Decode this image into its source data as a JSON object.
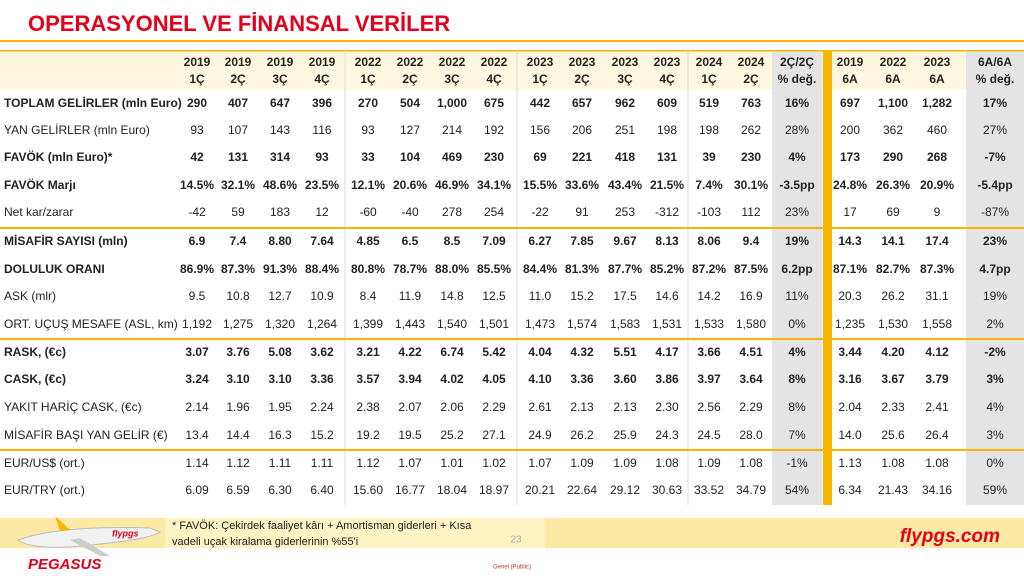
{
  "title": "OPERASYONEL VE FİNANSAL VERİLER",
  "table": {
    "columns": [
      [
        "2019",
        "1Ç"
      ],
      [
        "2019",
        "2Ç"
      ],
      [
        "2019",
        "3Ç"
      ],
      [
        "2019",
        "4Ç"
      ],
      [
        "2022",
        "1Ç"
      ],
      [
        "2022",
        "2Ç"
      ],
      [
        "2022",
        "3Ç"
      ],
      [
        "2022",
        "4Ç"
      ],
      [
        "2023",
        "1Ç"
      ],
      [
        "2023",
        "2Ç"
      ],
      [
        "2023",
        "3Ç"
      ],
      [
        "2023",
        "4Ç"
      ],
      [
        "2024",
        "1Ç"
      ],
      [
        "2024",
        "2Ç"
      ],
      [
        "2Ç/2Ç",
        "% değ."
      ],
      [
        "2019",
        "6A"
      ],
      [
        "2022",
        "6A"
      ],
      [
        "2023",
        "6A"
      ],
      [
        "6A/6A",
        "% değ."
      ]
    ],
    "rows": [
      {
        "label": "TOPLAM GELİRLER (mln Euro)",
        "bold": true,
        "cells": [
          "290",
          "407",
          "647",
          "396",
          "270",
          "504",
          "1,000",
          "675",
          "442",
          "657",
          "962",
          "609",
          "519",
          "763",
          "16%",
          "697",
          "1,100",
          "1,282",
          "17%"
        ]
      },
      {
        "label": "YAN GELİRLER (mln Euro)",
        "bold": false,
        "cells": [
          "93",
          "107",
          "143",
          "116",
          "93",
          "127",
          "214",
          "192",
          "156",
          "206",
          "251",
          "198",
          "198",
          "262",
          "28%",
          "200",
          "362",
          "460",
          "27%"
        ]
      },
      {
        "label": "FAVÖK (mln Euro)*",
        "bold": true,
        "cells": [
          "42",
          "131",
          "314",
          "93",
          "33",
          "104",
          "469",
          "230",
          "69",
          "221",
          "418",
          "131",
          "39",
          "230",
          "4%",
          "173",
          "290",
          "268",
          "-7%"
        ]
      },
      {
        "label": "FAVÖK Marjı",
        "bold": true,
        "cells": [
          "14.5%",
          "32.1%",
          "48.6%",
          "23.5%",
          "12.1%",
          "20.6%",
          "46.9%",
          "34.1%",
          "15.5%",
          "33.6%",
          "43.4%",
          "21.5%",
          "7.4%",
          "30.1%",
          "-3.5pp",
          "24.8%",
          "26.3%",
          "20.9%",
          "-5.4pp"
        ]
      },
      {
        "label": "Net kar/zarar",
        "bold": false,
        "cells": [
          "-42",
          "59",
          "183",
          "12",
          "-60",
          "-40",
          "278",
          "254",
          "-22",
          "91",
          "253",
          "-312",
          "-103",
          "112",
          "23%",
          "17",
          "69",
          "9",
          "-87%"
        ]
      },
      {
        "label": "MİSAFİR SAYISI (mln)",
        "bold": true,
        "cells": [
          "6.9",
          "7.4",
          "8.80",
          "7.64",
          "4.85",
          "6.5",
          "8.5",
          "7.09",
          "6.27",
          "7.85",
          "9.67",
          "8.13",
          "8.06",
          "9.4",
          "19%",
          "14.3",
          "14.1",
          "17.4",
          "23%"
        ]
      },
      {
        "label": "DOLULUK ORANI",
        "bold": true,
        "cells": [
          "86.9%",
          "87.3%",
          "91.3%",
          "88.4%",
          "80.8%",
          "78.7%",
          "88.0%",
          "85.5%",
          "84.4%",
          "81.3%",
          "87.7%",
          "85.2%",
          "87.2%",
          "87.5%",
          "6.2pp",
          "87.1%",
          "82.7%",
          "87.3%",
          "4.7pp"
        ]
      },
      {
        "label": "ASK (mlr)",
        "bold": false,
        "cells": [
          "9.5",
          "10.8",
          "12.7",
          "10.9",
          "8.4",
          "11.9",
          "14.8",
          "12.5",
          "11.0",
          "15.2",
          "17.5",
          "14.6",
          "14.2",
          "16.9",
          "11%",
          "20.3",
          "26.2",
          "31.1",
          "19%"
        ]
      },
      {
        "label": "ORT. UÇUŞ MESAFE (ASL, km)",
        "bold": false,
        "cells": [
          "1,192",
          "1,275",
          "1,320",
          "1,264",
          "1,399",
          "1,443",
          "1,540",
          "1,501",
          "1,473",
          "1,574",
          "1,583",
          "1,531",
          "1,533",
          "1,580",
          "0%",
          "1,235",
          "1,530",
          "1,558",
          "2%"
        ]
      },
      {
        "label": "RASK, (€c)",
        "bold": true,
        "cells": [
          "3.07",
          "3.76",
          "5.08",
          "3.62",
          "3.21",
          "4.22",
          "6.74",
          "5.42",
          "4.04",
          "4.32",
          "5.51",
          "4.17",
          "3.66",
          "4.51",
          "4%",
          "3.44",
          "4.20",
          "4.12",
          "-2%"
        ]
      },
      {
        "label": "CASK, (€c)",
        "bold": true,
        "cells": [
          "3.24",
          "3.10",
          "3.10",
          "3.36",
          "3.57",
          "3.94",
          "4.02",
          "4.05",
          "4.10",
          "3.36",
          "3.60",
          "3.86",
          "3.97",
          "3.64",
          "8%",
          "3.16",
          "3.67",
          "3.79",
          "3%"
        ]
      },
      {
        "label": "YAKIT HARİÇ CASK, (€c)",
        "bold": false,
        "cells": [
          "2.14",
          "1.96",
          "1.95",
          "2.24",
          "2.38",
          "2.07",
          "2.06",
          "2.29",
          "2.61",
          "2.13",
          "2.13",
          "2.30",
          "2.56",
          "2.29",
          "8%",
          "2.04",
          "2.33",
          "2.41",
          "4%"
        ]
      },
      {
        "label": "MİSAFİR BAŞI YAN GELİR (€)",
        "bold": false,
        "cells": [
          "13.4",
          "14.4",
          "16.3",
          "15.2",
          "19.2",
          "19.5",
          "25.2",
          "27.1",
          "24.9",
          "26.2",
          "25.9",
          "24.3",
          "24.5",
          "28.0",
          "7%",
          "14.0",
          "25.6",
          "26.4",
          "3%"
        ]
      },
      {
        "label": "EUR/US$  (ort.)",
        "bold": false,
        "cells": [
          "1.14",
          "1.12",
          "1.11",
          "1.11",
          "1.12",
          "1.07",
          "1.01",
          "1.02",
          "1.07",
          "1.09",
          "1.09",
          "1.08",
          "1.09",
          "1.08",
          "-1%",
          "1.13",
          "1.08",
          "1.08",
          "0%"
        ]
      },
      {
        "label": "EUR/TRY (ort.)",
        "bold": false,
        "cells": [
          "6.09",
          "6.59",
          "6.30",
          "6.40",
          "15.60",
          "16.77",
          "18.04",
          "18.97",
          "20.21",
          "22.64",
          "29.12",
          "30.63",
          "33.52",
          "34.79",
          "54%",
          "6.34",
          "21.43",
          "34.16",
          "59%"
        ]
      }
    ]
  },
  "footer": {
    "note": [
      "* FAVÖK: Çekirdek faaliyet kârı + Amortisman giderleri + Kısa",
      "vadeli uçak kiralama giderlerinin %55'i"
    ],
    "page": "23",
    "site": "flypgs.com",
    "brand": "PEGASUS",
    "classification": "Genel (Public)"
  }
}
